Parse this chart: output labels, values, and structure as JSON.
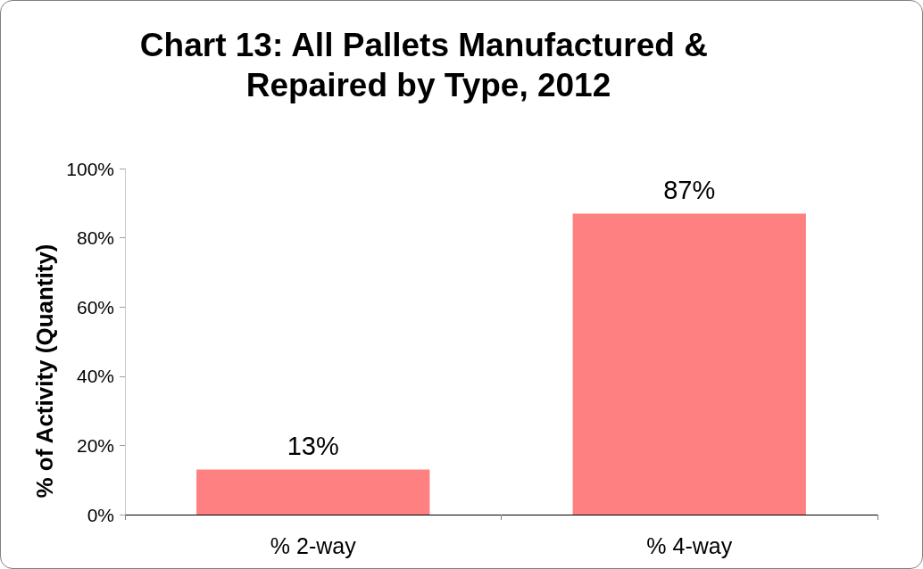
{
  "chart_data": {
    "type": "bar",
    "title": "Chart 13: All Pallets Manufactured & Repaired by Type, 2012",
    "ylabel": "% of Activity (Quantity)",
    "categories": [
      "% 2-way",
      "% 4-way"
    ],
    "values": [
      13,
      87
    ],
    "color": "#ff8080",
    "value_labels": [
      "13%",
      "87%"
    ],
    "ylim": [
      0,
      100
    ],
    "yticks": [
      {
        "value": 0,
        "label": "0%"
      },
      {
        "value": 20,
        "label": "20%"
      },
      {
        "value": 40,
        "label": "40%"
      },
      {
        "value": 60,
        "label": "60%"
      },
      {
        "value": 80,
        "label": "80%"
      },
      {
        "value": 100,
        "label": "100%"
      }
    ],
    "grid": false
  }
}
